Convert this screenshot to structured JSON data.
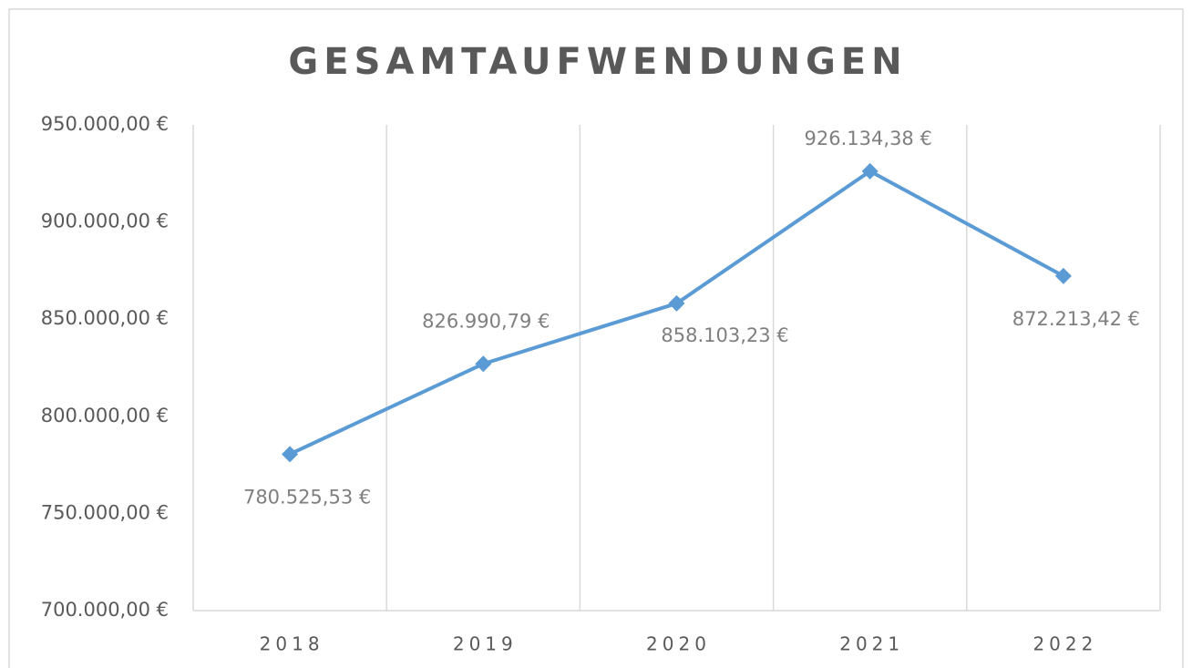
{
  "chart_data": {
    "type": "line",
    "title": "GESAMTAUFWENDUNGEN",
    "categories": [
      "2018",
      "2019",
      "2020",
      "2021",
      "2022"
    ],
    "series": [
      {
        "name": "Gesamtaufwendungen",
        "color": "#5b9bd5",
        "values": [
          780525.53,
          826990.79,
          858103.23,
          926134.38,
          872213.42
        ],
        "value_labels": [
          "780.525,53 €",
          "826.990,79 €",
          "858.103,23 €",
          "926.134,38 €",
          "872.213,42 €"
        ]
      }
    ],
    "ylim": [
      700000,
      950000
    ],
    "yticks": [
      {
        "value": 700000,
        "label": "700.000,00 €"
      },
      {
        "value": 750000,
        "label": "750.000,00 €"
      },
      {
        "value": 800000,
        "label": "800.000,00 €"
      },
      {
        "value": 850000,
        "label": "850.000,00 €"
      },
      {
        "value": 900000,
        "label": "900.000,00 €"
      },
      {
        "value": 950000,
        "label": "950.000,00 €"
      }
    ]
  }
}
